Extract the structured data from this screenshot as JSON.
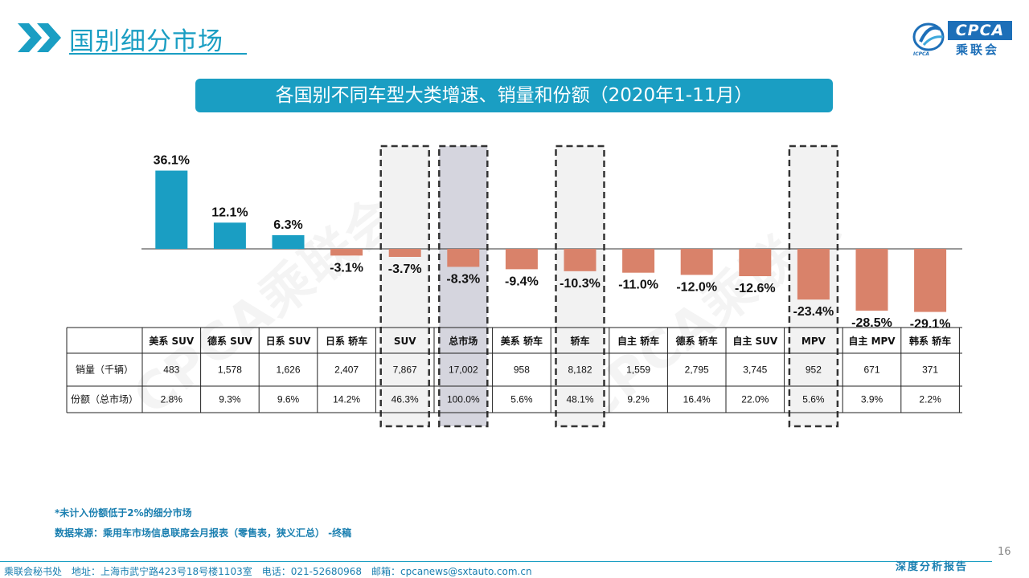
{
  "header": {
    "title": "国别细分市场",
    "logo_text": "CPCA",
    "logo_cn": "乘联会",
    "logo_sub": "ICPCA"
  },
  "banner": {
    "title": "各国别不同车型大类增速、销量和份额（2020年1-11月）"
  },
  "watermark": "CPCA乘联会",
  "colors": {
    "accent": "#1a9ec3",
    "positive_bar": "#1a9ec3",
    "negative_bar": "#d9826a",
    "highlight_bg": "#f2f2f2",
    "total_bg": "#d5d5de"
  },
  "chart_data": {
    "type": "bar",
    "title": "各国别不同车型大类增速、销量和份额（2020年1-11月）",
    "categories": [
      "美系 SUV",
      "德系 SUV",
      "日系 SUV",
      "日系 轿车",
      "SUV",
      "总市场",
      "美系 轿车",
      "轿车",
      "自主 轿车",
      "德系 轿车",
      "自主 SUV",
      "MPV",
      "自主 MPV",
      "韩系 轿车"
    ],
    "series": [
      {
        "values": [
          36.1,
          12.1,
          6.3,
          -3.1,
          -3.7,
          -8.3,
          -9.4,
          -10.3,
          -11.0,
          -12.0,
          -12.6,
          -23.4,
          -28.5,
          -29.1
        ]
      }
    ],
    "value_labels": [
      "36.1%",
      "12.1%",
      "6.3%",
      "-3.1%",
      "-3.7%",
      "-8.3%",
      "-9.4%",
      "-10.3%",
      "-11.0%",
      "-12.0%",
      "-12.6%",
      "-23.4%",
      "-28.5%",
      "-29.1%"
    ],
    "highlighted": [
      "SUV",
      "总市场",
      "轿车",
      "MPV"
    ],
    "xlabel": "",
    "ylabel": "",
    "grid": false,
    "table": {
      "rows": [
        {
          "label": "销量（千辆）",
          "values": [
            "483",
            "1,578",
            "1,626",
            "2,407",
            "7,867",
            "17,002",
            "958",
            "8,182",
            "1,559",
            "2,795",
            "3,745",
            "952",
            "671",
            "371"
          ]
        },
        {
          "label": "份额（总市场）",
          "values": [
            "2.8%",
            "9.3%",
            "9.6%",
            "14.2%",
            "46.3%",
            "100.0%",
            "5.6%",
            "48.1%",
            "9.2%",
            "16.4%",
            "22.0%",
            "5.6%",
            "3.9%",
            "2.2%"
          ]
        }
      ]
    }
  },
  "notes": {
    "note1": "*未计入份额低于2%的细分市场",
    "note2": "数据来源：乘用车市场信息联席会月报表（零售表，狭义汇总） -终稿"
  },
  "footer": {
    "page": "16",
    "address": "乘联会秘书处　地址：上海市武宁路423号18号楼1103室　电话：021-52680968　邮箱：cpcanews@sxtauto.com.cn",
    "right": "深度分析报告"
  }
}
